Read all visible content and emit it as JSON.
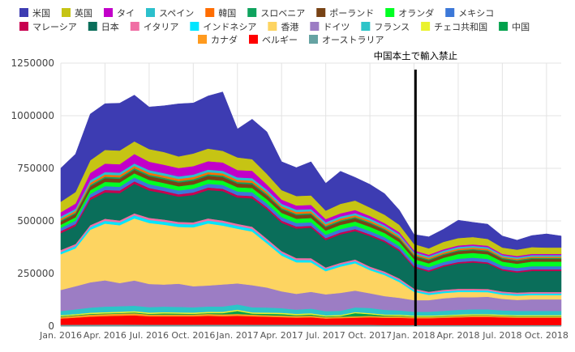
{
  "chart_data": {
    "type": "area",
    "stacked": true,
    "title": "",
    "xlabel": "",
    "ylabel": "",
    "ylim": [
      0,
      1250000
    ],
    "yticks": [
      0,
      250000,
      500000,
      750000,
      1000000,
      1250000
    ],
    "ytick_labels": [
      "0",
      "250000",
      "500000",
      "750000",
      "1000000",
      "1250000"
    ],
    "grid": true,
    "legend_position": "top",
    "x": [
      "2016-01",
      "2016-02",
      "2016-03",
      "2016-04",
      "2016-05",
      "2016-06",
      "2016-07",
      "2016-08",
      "2016-09",
      "2016-10",
      "2016-11",
      "2016-12",
      "2017-01",
      "2017-02",
      "2017-03",
      "2017-04",
      "2017-05",
      "2017-06",
      "2017-07",
      "2017-08",
      "2017-09",
      "2017-10",
      "2017-11",
      "2017-12",
      "2018-01",
      "2018-02",
      "2018-03",
      "2018-04",
      "2018-05",
      "2018-06",
      "2018-07",
      "2018-08",
      "2018-09",
      "2018-10",
      "2018-11"
    ],
    "xtick_labels": [
      {
        "index": 0,
        "label": "Jan. 2016"
      },
      {
        "index": 3,
        "label": "Apr. 2016"
      },
      {
        "index": 6,
        "label": "Jul. 2016"
      },
      {
        "index": 9,
        "label": "Oct. 2016"
      },
      {
        "index": 12,
        "label": "Jan. 2017"
      },
      {
        "index": 15,
        "label": "Apr. 2017"
      },
      {
        "index": 18,
        "label": "Jul. 2017"
      },
      {
        "index": 21,
        "label": "Oct. 2017"
      },
      {
        "index": 24,
        "label": "Jan. 2018"
      },
      {
        "index": 27,
        "label": "Apr. 2018"
      },
      {
        "index": 30,
        "label": "Jul. 2018"
      },
      {
        "index": 33,
        "label": "Oct. 2018"
      }
    ],
    "annotations": [
      {
        "text": "中国本土で輸入禁止",
        "x_index": 24.1,
        "type": "vertical-line"
      }
    ],
    "series": [
      {
        "name": "オーストラリア",
        "color": "#66a3a3",
        "values": [
          6000,
          6500,
          7000,
          7500,
          7500,
          7000,
          6500,
          6500,
          6500,
          6500,
          7000,
          7000,
          7000,
          6500,
          6500,
          6500,
          6500,
          6000,
          6000,
          6000,
          6000,
          6000,
          5500,
          5500,
          5500,
          5500,
          5500,
          5500,
          5500,
          5500,
          5500,
          5500,
          5500,
          5500,
          5500
        ]
      },
      {
        "name": "ベルギー",
        "color": "#ff0000",
        "values": [
          30000,
          34000,
          38000,
          40000,
          42000,
          44000,
          40000,
          40000,
          40000,
          40000,
          42000,
          40000,
          42000,
          40000,
          38000,
          36000,
          34000,
          36000,
          30000,
          32000,
          34000,
          36000,
          34000,
          34000,
          32000,
          32000,
          34000,
          36000,
          38000,
          38000,
          36000,
          34000,
          34000,
          34000,
          34000
        ]
      },
      {
        "name": "カナダ",
        "color": "#ff9a1e",
        "values": [
          8000,
          9000,
          10000,
          10000,
          10000,
          10000,
          9000,
          9000,
          9000,
          9000,
          9000,
          9000,
          9000,
          8000,
          8000,
          8000,
          8000,
          8000,
          7000,
          7000,
          7000,
          7000,
          7000,
          7000,
          6000,
          6000,
          6000,
          7000,
          7000,
          7000,
          6000,
          6000,
          6000,
          6000,
          6000
        ]
      },
      {
        "name": "中国",
        "color": "#00a14b",
        "values": [
          3000,
          3000,
          3000,
          3000,
          3000,
          4000,
          3000,
          5000,
          4000,
          3000,
          4000,
          6000,
          14000,
          5000,
          6000,
          7000,
          4000,
          5000,
          3000,
          3000,
          15000,
          8000,
          4000,
          3000,
          2000,
          2000,
          2000,
          2000,
          2000,
          2000,
          2000,
          2000,
          2000,
          2000,
          2000
        ]
      },
      {
        "name": "チェコ共和国",
        "color": "#eaf22e",
        "values": [
          5000,
          5000,
          6000,
          6000,
          6000,
          6000,
          6000,
          6000,
          6000,
          6000,
          6000,
          6000,
          6000,
          6000,
          6000,
          6000,
          6000,
          6000,
          5000,
          5000,
          5000,
          5000,
          5000,
          5000,
          5000,
          5000,
          5000,
          5000,
          5000,
          5000,
          5000,
          5000,
          5000,
          5000,
          5000
        ]
      },
      {
        "name": "フランス",
        "color": "#2dc4c8",
        "values": [
          20000,
          22000,
          24000,
          26000,
          26000,
          26000,
          26000,
          26000,
          26000,
          25000,
          25000,
          25000,
          25000,
          24000,
          24000,
          22000,
          20000,
          22000,
          20000,
          20000,
          22000,
          24000,
          22000,
          20000,
          18000,
          18000,
          20000,
          22000,
          22000,
          22000,
          20000,
          20000,
          20000,
          20000,
          20000
        ]
      },
      {
        "name": "ドイツ",
        "color": "#9c7dc4",
        "values": [
          100000,
          110000,
          120000,
          125000,
          110000,
          120000,
          110000,
          105000,
          110000,
          100000,
          100000,
          105000,
          100000,
          105000,
          95000,
          80000,
          75000,
          80000,
          80000,
          85000,
          80000,
          70000,
          65000,
          60000,
          55000,
          55000,
          60000,
          60000,
          58000,
          60000,
          55000,
          52000,
          55000,
          55000,
          55000
        ]
      },
      {
        "name": "香港",
        "color": "#fdd461",
        "values": [
          170000,
          180000,
          250000,
          270000,
          275000,
          295000,
          290000,
          285000,
          270000,
          280000,
          295000,
          280000,
          260000,
          255000,
          210000,
          170000,
          150000,
          140000,
          110000,
          125000,
          130000,
          110000,
          100000,
          75000,
          40000,
          25000,
          25000,
          25000,
          25000,
          22000,
          20000,
          20000,
          20000,
          20000,
          20000
        ]
      },
      {
        "name": "インドネシア",
        "color": "#00e5ff",
        "values": [
          10000,
          11000,
          12000,
          13000,
          13000,
          14000,
          14000,
          14000,
          14000,
          14000,
          14000,
          14000,
          13000,
          13000,
          12000,
          12000,
          11000,
          11000,
          10000,
          10000,
          10000,
          9000,
          9000,
          9000,
          8000,
          8000,
          8000,
          8000,
          8000,
          8000,
          8000,
          8000,
          8000,
          8000,
          8000
        ]
      },
      {
        "name": "イタリア",
        "color": "#f06ea4",
        "values": [
          10000,
          10000,
          10000,
          10000,
          10000,
          10000,
          10000,
          10000,
          10000,
          10000,
          10000,
          10000,
          10000,
          10000,
          10000,
          9000,
          9000,
          9000,
          8000,
          8000,
          8000,
          8000,
          8000,
          8000,
          7000,
          7000,
          7000,
          7000,
          7000,
          7000,
          7000,
          7000,
          7000,
          7000,
          7000
        ]
      },
      {
        "name": "日本",
        "color": "#0a6e5a",
        "values": [
          80000,
          85000,
          120000,
          125000,
          130000,
          140000,
          130000,
          125000,
          120000,
          130000,
          135000,
          140000,
          125000,
          135000,
          140000,
          135000,
          140000,
          145000,
          130000,
          135000,
          135000,
          145000,
          140000,
          130000,
          100000,
          95000,
          110000,
          120000,
          125000,
          120000,
          100000,
          95000,
          100000,
          100000,
          100000
        ]
      },
      {
        "name": "マレーシア",
        "color": "#c8004f",
        "values": [
          10000,
          10000,
          11000,
          12000,
          12000,
          12000,
          12000,
          11000,
          11000,
          12000,
          12000,
          11000,
          11000,
          11000,
          10000,
          10000,
          10000,
          9000,
          9000,
          9000,
          9000,
          8000,
          8000,
          8000,
          7000,
          7000,
          7000,
          7000,
          7000,
          7000,
          7000,
          7000,
          7000,
          7000,
          7000
        ]
      },
      {
        "name": "メキシコ",
        "color": "#3c78d8",
        "values": [
          15000,
          16000,
          17000,
          18000,
          18000,
          18000,
          18000,
          18000,
          18000,
          18000,
          18000,
          18000,
          18000,
          18000,
          17000,
          17000,
          17000,
          17000,
          16000,
          16000,
          16000,
          16000,
          15000,
          15000,
          15000,
          15000,
          15000,
          16000,
          16000,
          16000,
          15000,
          15000,
          15000,
          15000,
          15000
        ]
      },
      {
        "name": "オランダ",
        "color": "#00ff22",
        "values": [
          15000,
          16000,
          18000,
          20000,
          20000,
          20000,
          20000,
          20000,
          20000,
          20000,
          20000,
          20000,
          20000,
          20000,
          20000,
          20000,
          20000,
          20000,
          20000,
          20000,
          20000,
          20000,
          20000,
          20000,
          18000,
          18000,
          20000,
          22000,
          22000,
          22000,
          20000,
          20000,
          22000,
          22000,
          22000
        ]
      },
      {
        "name": "ポーランド",
        "color": "#784315",
        "values": [
          15000,
          16000,
          18000,
          18000,
          18000,
          18000,
          18000,
          18000,
          18000,
          18000,
          18000,
          18000,
          18000,
          18000,
          18000,
          17000,
          17000,
          17000,
          16000,
          16000,
          16000,
          16000,
          15000,
          15000,
          14000,
          14000,
          14000,
          14000,
          14000,
          14000,
          13000,
          13000,
          13000,
          13000,
          13000
        ]
      },
      {
        "name": "スロベニア",
        "color": "#0fa35e",
        "values": [
          6000,
          6000,
          7000,
          7000,
          7000,
          7000,
          7000,
          7000,
          7000,
          7000,
          7000,
          7000,
          7000,
          7000,
          7000,
          6000,
          6000,
          6000,
          6000,
          6000,
          6000,
          6000,
          5000,
          5000,
          5000,
          5000,
          5000,
          5000,
          5000,
          5000,
          5000,
          5000,
          5000,
          5000,
          5000
        ]
      },
      {
        "name": "韓国",
        "color": "#ff6d01",
        "values": [
          8000,
          8000,
          10000,
          10000,
          10000,
          10000,
          10000,
          10000,
          10000,
          10000,
          10000,
          10000,
          10000,
          10000,
          10000,
          9000,
          9000,
          9000,
          8000,
          8000,
          8000,
          8000,
          8000,
          8000,
          7000,
          7000,
          7000,
          7000,
          7000,
          7000,
          6000,
          6000,
          6000,
          6000,
          6000
        ]
      },
      {
        "name": "スペイン",
        "color": "#2cc0cc",
        "values": [
          10000,
          10000,
          12000,
          12000,
          12000,
          12000,
          12000,
          12000,
          12000,
          12000,
          12000,
          12000,
          12000,
          12000,
          11000,
          11000,
          11000,
          10000,
          10000,
          10000,
          10000,
          10000,
          9000,
          9000,
          8000,
          8000,
          8000,
          8000,
          8000,
          8000,
          7000,
          7000,
          7000,
          7000,
          7000
        ]
      },
      {
        "name": "タイ",
        "color": "#c200c9",
        "values": [
          20000,
          25000,
          35000,
          40000,
          40000,
          45000,
          40000,
          40000,
          40000,
          40000,
          40000,
          40000,
          35000,
          35000,
          25000,
          20000,
          20000,
          20000,
          15000,
          15000,
          15000,
          12000,
          10000,
          10000,
          8000,
          7000,
          7000,
          7000,
          7000,
          7000,
          6000,
          6000,
          6000,
          6000,
          6000
        ]
      },
      {
        "name": "英国",
        "color": "#c6c414",
        "values": [
          50000,
          55000,
          60000,
          65000,
          65000,
          60000,
          60000,
          60000,
          55000,
          60000,
          60000,
          55000,
          60000,
          55000,
          50000,
          45000,
          45000,
          45000,
          40000,
          45000,
          45000,
          40000,
          40000,
          35000,
          30000,
          30000,
          35000,
          35000,
          35000,
          32000,
          30000,
          30000,
          32000,
          30000,
          30000
        ]
      },
      {
        "name": "米国",
        "color": "#3d3cb2",
        "values": [
          160000,
          180000,
          220000,
          220000,
          225000,
          220000,
          200000,
          220000,
          250000,
          240000,
          250000,
          280000,
          135000,
          190000,
          200000,
          135000,
          135000,
          160000,
          130000,
          155000,
          110000,
          110000,
          100000,
          70000,
          45000,
          55000,
          60000,
          85000,
          70000,
          70000,
          55000,
          45000,
          55000,
          65000,
          55000
        ]
      }
    ]
  }
}
